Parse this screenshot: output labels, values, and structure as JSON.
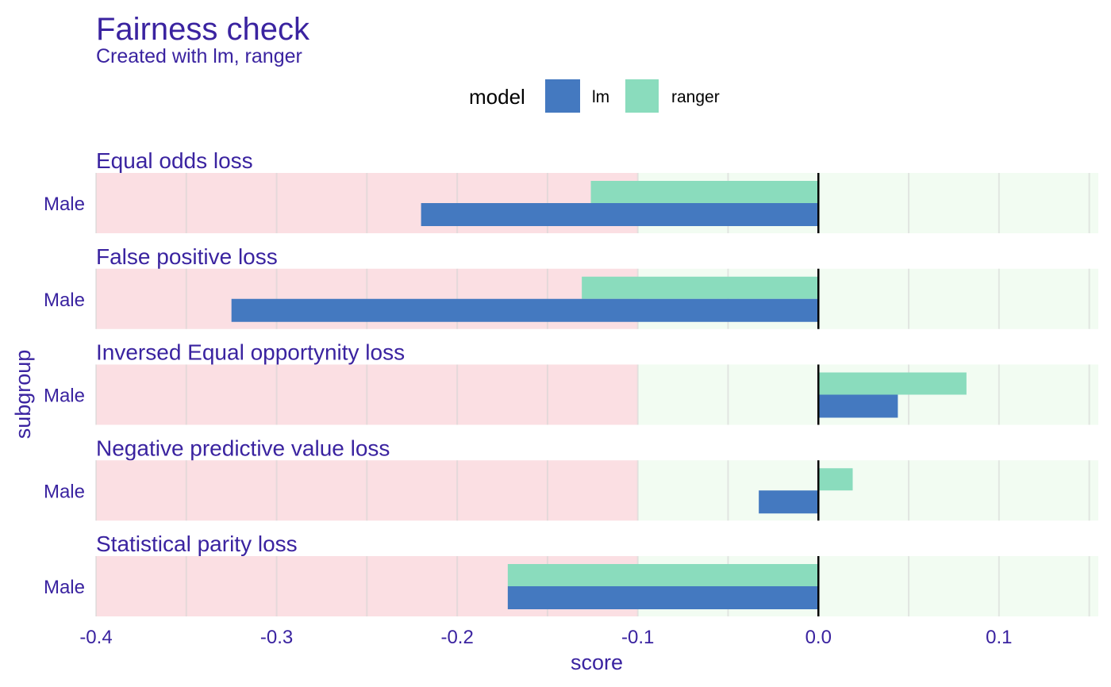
{
  "chart_data": {
    "type": "bar",
    "orientation": "horizontal",
    "title": "Fairness check",
    "subtitle": "Created with lm, ranger",
    "xlabel": "score",
    "ylabel": "subgroup",
    "xlim": [
      -0.4,
      0.155
    ],
    "x_ticks": [
      -0.4,
      -0.3,
      -0.2,
      -0.1,
      0.0,
      0.1
    ],
    "x_tick_labels": [
      "-0.4",
      "-0.3",
      "-0.2",
      "-0.1",
      "0.0",
      "0.1"
    ],
    "grid": true,
    "legend": {
      "title": "model",
      "position": "top",
      "entries": [
        {
          "label": "lm",
          "color": "#4479c0"
        },
        {
          "label": "ranger",
          "color": "#8adcbd"
        }
      ]
    },
    "zones": {
      "unfair_below": -0.1,
      "unfair_color": "#fbdfe3",
      "fair_color": "#f2fcf2"
    },
    "facets": [
      {
        "title": "Equal odds loss",
        "subgroup": "Male",
        "values": {
          "lm": -0.22,
          "ranger": -0.126
        }
      },
      {
        "title": "False positive loss",
        "subgroup": "Male",
        "values": {
          "lm": -0.325,
          "ranger": -0.131
        }
      },
      {
        "title": "Inversed Equal opportynity loss",
        "subgroup": "Male",
        "values": {
          "lm": 0.044,
          "ranger": 0.082
        }
      },
      {
        "title": "Negative predictive value loss",
        "subgroup": "Male",
        "values": {
          "lm": -0.033,
          "ranger": 0.019
        }
      },
      {
        "title": "Statistical parity loss",
        "subgroup": "Male",
        "values": {
          "lm": -0.172,
          "ranger": -0.172
        }
      }
    ],
    "series": [
      {
        "name": "lm",
        "values": [
          -0.22,
          -0.325,
          0.044,
          -0.033,
          -0.172
        ]
      },
      {
        "name": "ranger",
        "values": [
          -0.126,
          -0.131,
          0.082,
          0.019,
          -0.172
        ]
      }
    ]
  }
}
